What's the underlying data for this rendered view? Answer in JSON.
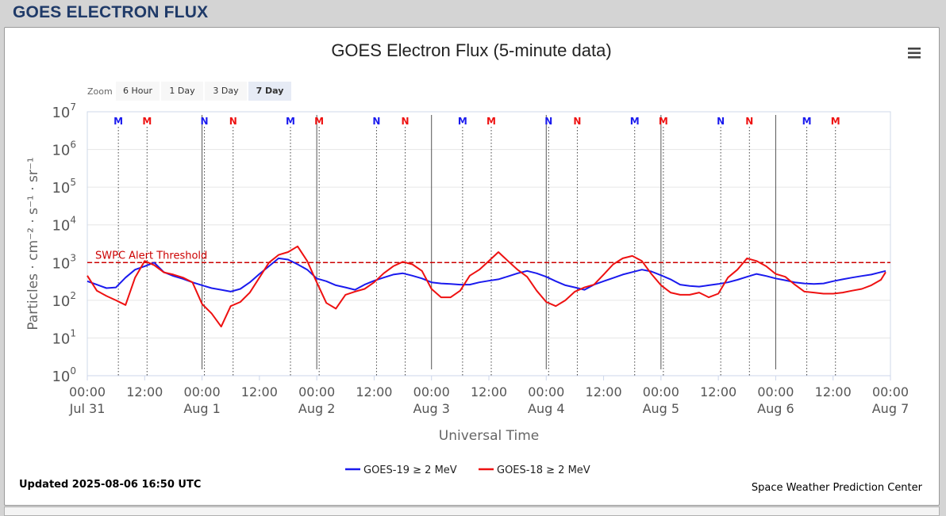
{
  "page": {
    "title": "GOES ELECTRON FLUX"
  },
  "zoom": {
    "label": "Zoom",
    "buttons": [
      "6 Hour",
      "1 Day",
      "3 Day",
      "7 Day"
    ],
    "selected": "7 Day"
  },
  "menu": {
    "icon": "hamburger-menu-icon"
  },
  "threshold": {
    "label": "SWPC Alert Threshold",
    "value": 1000,
    "color": "#cc0000"
  },
  "markers": {
    "labels": {
      "M": "M",
      "N": "N"
    }
  },
  "footer": {
    "updated": "Updated 2025-08-06 16:50 UTC",
    "credit": "Space Weather Prediction Center"
  },
  "chart_data": {
    "type": "line",
    "title": "GOES Electron Flux (5-minute data)",
    "xlabel": "Universal Time",
    "ylabel": "Particles · cm⁻² · s⁻¹ · sr⁻¹",
    "yscale": "log",
    "ylim": [
      1,
      10000000
    ],
    "y_ticks": [
      {
        "base": "10",
        "exp": "0"
      },
      {
        "base": "10",
        "exp": "1"
      },
      {
        "base": "10",
        "exp": "2"
      },
      {
        "base": "10",
        "exp": "3"
      },
      {
        "base": "10",
        "exp": "4"
      },
      {
        "base": "10",
        "exp": "5"
      },
      {
        "base": "10",
        "exp": "6"
      },
      {
        "base": "10",
        "exp": "7"
      }
    ],
    "xlim": [
      "2025-07-31 00:00",
      "2025-08-07 00:00"
    ],
    "x_ticks": [
      {
        "time": "00:00",
        "date": "Jul 31"
      },
      {
        "time": "12:00",
        "date": ""
      },
      {
        "time": "00:00",
        "date": "Aug 1"
      },
      {
        "time": "12:00",
        "date": ""
      },
      {
        "time": "00:00",
        "date": "Aug 2"
      },
      {
        "time": "12:00",
        "date": ""
      },
      {
        "time": "00:00",
        "date": "Aug 3"
      },
      {
        "time": "12:00",
        "date": ""
      },
      {
        "time": "00:00",
        "date": "Aug 4"
      },
      {
        "time": "12:00",
        "date": ""
      },
      {
        "time": "00:00",
        "date": "Aug 5"
      },
      {
        "time": "12:00",
        "date": ""
      },
      {
        "time": "00:00",
        "date": "Aug 6"
      },
      {
        "time": "12:00",
        "date": ""
      },
      {
        "time": "00:00",
        "date": "Aug 7"
      }
    ],
    "grid": true,
    "legend_position": "bottom-center",
    "series": [
      {
        "name": "GOES-19 ≥ 2 MeV",
        "color": "#1a1aee",
        "x_hours": [
          0,
          2,
          4,
          6,
          8,
          10,
          12,
          14,
          16,
          18,
          20,
          22,
          24,
          26,
          28,
          30,
          32,
          34,
          36,
          38,
          40,
          42,
          44,
          46,
          48,
          50,
          52,
          54,
          56,
          58,
          60,
          62,
          64,
          66,
          68,
          70,
          72,
          74,
          76,
          78,
          80,
          82,
          84,
          86,
          88,
          90,
          92,
          94,
          96,
          98,
          100,
          102,
          104,
          106,
          108,
          110,
          112,
          114,
          116,
          118,
          120,
          122,
          124,
          126,
          128,
          130,
          132,
          134,
          136,
          138,
          140,
          142,
          144,
          146,
          148,
          150,
          152,
          154,
          156,
          158,
          160,
          162,
          164,
          166,
          167
        ],
        "values": [
          320,
          260,
          210,
          220,
          400,
          650,
          800,
          1000,
          560,
          440,
          370,
          300,
          250,
          210,
          190,
          170,
          200,
          300,
          500,
          800,
          1300,
          1200,
          900,
          650,
          380,
          320,
          250,
          220,
          190,
          260,
          330,
          400,
          480,
          520,
          450,
          380,
          300,
          280,
          270,
          260,
          260,
          300,
          330,
          360,
          430,
          520,
          600,
          520,
          420,
          320,
          250,
          220,
          190,
          260,
          320,
          390,
          480,
          560,
          650,
          580,
          460,
          360,
          260,
          240,
          230,
          250,
          270,
          300,
          350,
          420,
          500,
          440,
          380,
          340,
          300,
          280,
          270,
          280,
          320,
          360,
          400,
          440,
          480,
          560,
          600
        ]
      },
      {
        "name": "GOES-18 ≥ 2 MeV",
        "color": "#ee1111",
        "x_hours": [
          0,
          2,
          4,
          6,
          8,
          10,
          12,
          14,
          16,
          18,
          20,
          22,
          24,
          26,
          28,
          30,
          32,
          34,
          36,
          38,
          40,
          42,
          44,
          46,
          48,
          50,
          52,
          54,
          56,
          58,
          60,
          62,
          64,
          66,
          68,
          70,
          72,
          74,
          76,
          78,
          80,
          82,
          84,
          86,
          88,
          90,
          92,
          94,
          96,
          98,
          100,
          102,
          104,
          106,
          108,
          110,
          112,
          114,
          116,
          118,
          120,
          122,
          124,
          126,
          128,
          130,
          132,
          134,
          136,
          138,
          140,
          142,
          144,
          146,
          148,
          150,
          152,
          154,
          156,
          158,
          160,
          162,
          164,
          166,
          167
        ],
        "values": [
          450,
          180,
          130,
          100,
          75,
          400,
          1100,
          850,
          550,
          480,
          400,
          300,
          80,
          45,
          20,
          70,
          90,
          160,
          400,
          1000,
          1600,
          1900,
          2700,
          1100,
          300,
          85,
          60,
          140,
          170,
          200,
          300,
          520,
          800,
          1050,
          900,
          600,
          200,
          120,
          120,
          180,
          450,
          650,
          1100,
          1900,
          1100,
          650,
          420,
          180,
          90,
          70,
          100,
          170,
          220,
          260,
          480,
          900,
          1300,
          1500,
          1100,
          500,
          250,
          160,
          140,
          140,
          160,
          120,
          150,
          400,
          650,
          1300,
          1100,
          800,
          500,
          420,
          260,
          170,
          160,
          150,
          150,
          160,
          180,
          200,
          250,
          350,
          560
        ]
      }
    ],
    "markers": [
      {
        "x_hours": 6.5,
        "label": "M",
        "color": "#1a1aee"
      },
      {
        "x_hours": 12.5,
        "label": "M",
        "color": "#ee1111"
      },
      {
        "x_hours": 24.5,
        "label": "N",
        "color": "#1a1aee"
      },
      {
        "x_hours": 30.5,
        "label": "N",
        "color": "#ee1111"
      },
      {
        "x_hours": 42.5,
        "label": "M",
        "color": "#1a1aee"
      },
      {
        "x_hours": 48.5,
        "label": "M",
        "color": "#ee1111"
      },
      {
        "x_hours": 60.5,
        "label": "N",
        "color": "#1a1aee"
      },
      {
        "x_hours": 66.5,
        "label": "N",
        "color": "#ee1111"
      },
      {
        "x_hours": 78.5,
        "label": "M",
        "color": "#1a1aee"
      },
      {
        "x_hours": 84.5,
        "label": "M",
        "color": "#ee1111"
      },
      {
        "x_hours": 96.5,
        "label": "N",
        "color": "#1a1aee"
      },
      {
        "x_hours": 102.5,
        "label": "N",
        "color": "#ee1111"
      },
      {
        "x_hours": 114.5,
        "label": "M",
        "color": "#1a1aee"
      },
      {
        "x_hours": 120.5,
        "label": "M",
        "color": "#ee1111"
      },
      {
        "x_hours": 132.5,
        "label": "N",
        "color": "#1a1aee"
      },
      {
        "x_hours": 138.5,
        "label": "N",
        "color": "#ee1111"
      },
      {
        "x_hours": 150.5,
        "label": "M",
        "color": "#1a1aee"
      },
      {
        "x_hours": 156.5,
        "label": "M",
        "color": "#ee1111"
      }
    ]
  }
}
